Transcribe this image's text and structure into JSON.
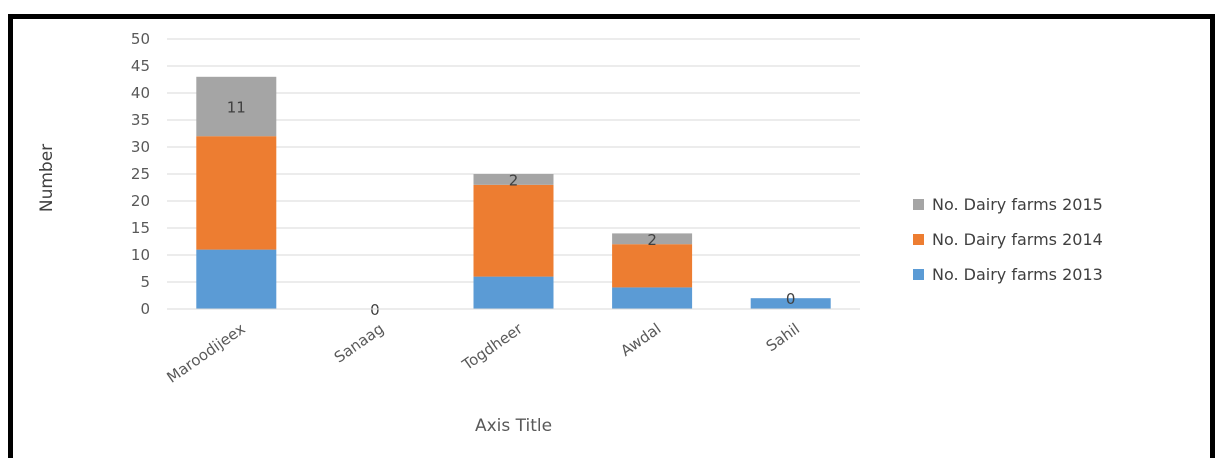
{
  "chart_data": {
    "type": "bar",
    "stacked": true,
    "categories": [
      "Maroodijeex",
      "Sanaag",
      "Togdheer",
      "Awdal",
      "Sahil"
    ],
    "series": [
      {
        "name": "No. Dairy farms 2013",
        "values": [
          11,
          0,
          6,
          4,
          2
        ],
        "color": "#5b9bd5"
      },
      {
        "name": "No. Dairy farms 2014",
        "values": [
          21,
          0,
          17,
          8,
          0
        ],
        "color": "#ed7d31"
      },
      {
        "name": "No. Dairy farms 2015",
        "values": [
          11,
          0,
          2,
          2,
          0
        ],
        "color": "#a5a5a5"
      }
    ],
    "data_labels": [
      "11",
      "0",
      "2",
      "2",
      "0"
    ],
    "yticks": [
      "0",
      "5",
      "10",
      "15",
      "20",
      "25",
      "30",
      "35",
      "40",
      "45",
      "50"
    ],
    "ylim": [
      0,
      50
    ],
    "xlabel": "Axis Title",
    "ylabel": "Number",
    "grid": true,
    "legend_position": "right",
    "legend_order": [
      "No. Dairy farms 2015",
      "No. Dairy farms 2014",
      "No. Dairy farms 2013"
    ]
  }
}
